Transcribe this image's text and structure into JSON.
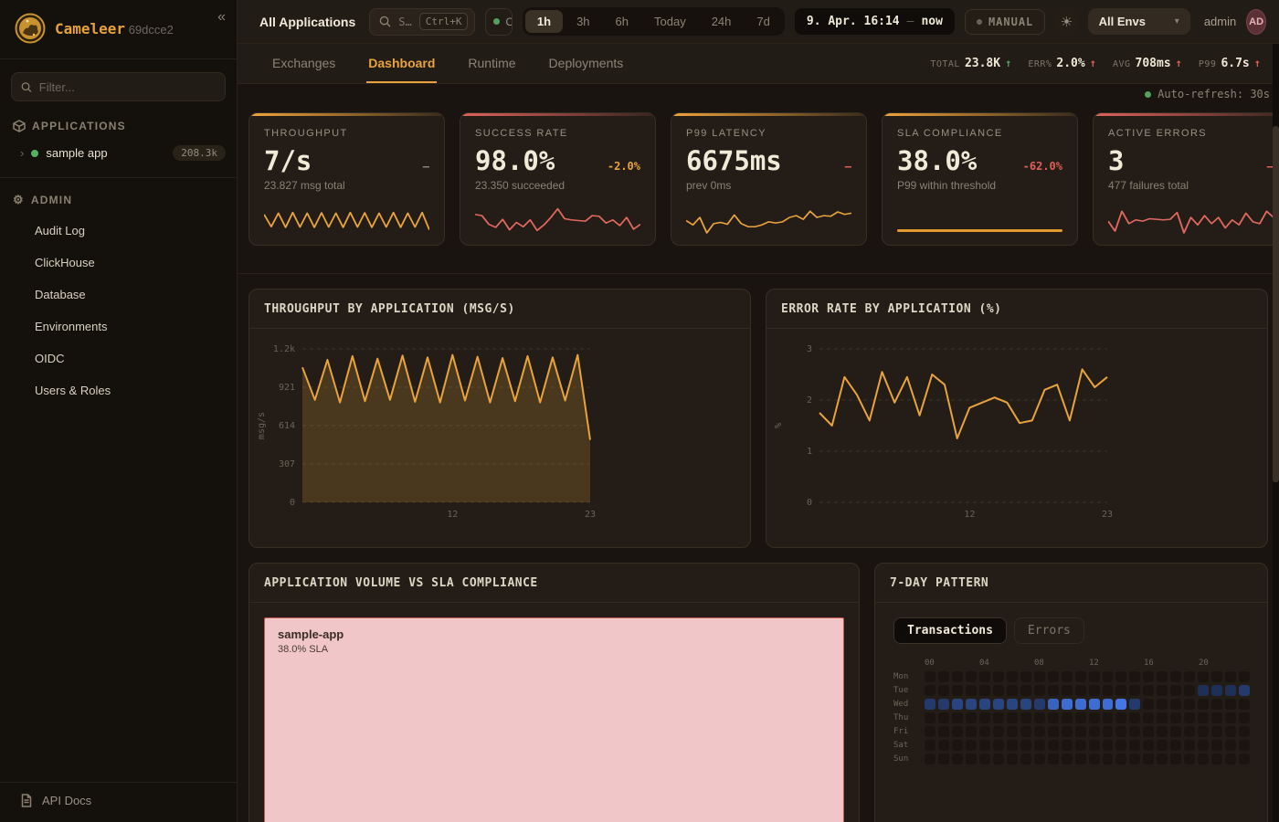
{
  "icons": {
    "collapse": "«",
    "chevron": "›",
    "dropdown": "▾",
    "sun": "☀",
    "gear": "⚙",
    "up_arrow": "↑"
  },
  "sidebar": {
    "brand": "Cameleer",
    "build": "69dcce2",
    "filter_placeholder": "Filter...",
    "applications_label": "APPLICATIONS",
    "app": {
      "name": "sample app",
      "badge": "208.3k"
    },
    "admin_label": "ADMIN",
    "admin_items": [
      "Audit Log",
      "ClickHouse",
      "Database",
      "Environments",
      "OIDC",
      "Users & Roles"
    ],
    "api_docs": "API Docs"
  },
  "topbar": {
    "title": "All Applications",
    "search": {
      "placeholder": "S…",
      "kbd": "Ctrl+K"
    },
    "status": "O",
    "ranges": [
      "1h",
      "3h",
      "6h",
      "Today",
      "24h",
      "7d"
    ],
    "active_range": "1h",
    "date": "9. Apr. 16:14",
    "date_sep": "–",
    "date_now": "now",
    "manual": "MANUAL",
    "env": "All Envs",
    "user": "admin",
    "avatar": "AD"
  },
  "tabs": {
    "items": [
      "Exchanges",
      "Dashboard",
      "Runtime",
      "Deployments"
    ],
    "active": "Dashboard"
  },
  "stats": [
    {
      "label": "TOTAL",
      "value": "23.8K",
      "arrow": "↑",
      "color": "green"
    },
    {
      "label": "ERR%",
      "value": "2.0%",
      "arrow": "↑",
      "color": "red"
    },
    {
      "label": "AVG",
      "value": "708ms",
      "arrow": "↑",
      "color": "red"
    },
    {
      "label": "P99",
      "value": "6.7s",
      "arrow": "↑",
      "color": "red"
    }
  ],
  "autorefresh": "Auto-refresh: 30s",
  "kpis": [
    {
      "label": "THROUGHPUT",
      "value": "7/s",
      "delta": "–",
      "delta_color": "#8a8174",
      "sub": "23.827 msg total",
      "accent": "orange",
      "spark": {
        "color": "#e8a33d",
        "values": [
          62,
          22,
          66,
          20,
          68,
          21,
          66,
          20,
          67,
          21,
          66,
          20,
          68,
          21,
          67,
          20,
          66,
          21,
          68,
          20,
          66,
          21,
          68,
          12
        ]
      }
    },
    {
      "label": "SUCCESS RATE",
      "value": "98.0%",
      "delta": "-2.0%",
      "delta_color": "#e8a33d",
      "sub": "23.350 succeeded",
      "accent": "red",
      "spark": {
        "color": "#e0685f",
        "values": [
          62,
          58,
          30,
          20,
          46,
          12,
          36,
          22,
          44,
          10,
          28,
          52,
          80,
          48,
          44,
          42,
          40,
          58,
          56,
          34,
          44,
          26,
          52,
          14,
          30
        ]
      }
    },
    {
      "label": "P99 LATENCY",
      "value": "6675ms",
      "delta": "–",
      "delta_color": "#dd5f58",
      "sub": "prev 0ms",
      "accent": "orange",
      "spark": {
        "color": "#e8a33d",
        "values": [
          42,
          28,
          52,
          2,
          32,
          36,
          30,
          60,
          32,
          22,
          22,
          28,
          38,
          34,
          38,
          52,
          58,
          46,
          72,
          52,
          58,
          56,
          70,
          62,
          66
        ]
      }
    },
    {
      "label": "SLA COMPLIANCE",
      "value": "38.0%",
      "delta": "-62.0%",
      "delta_color": "#dd5f58",
      "sub": "P99 within threshold",
      "accent": "orange",
      "bar_color": "#e09a2e"
    },
    {
      "label": "ACTIVE ERRORS",
      "value": "3",
      "delta": "–",
      "delta_color": "#dd5f58",
      "sub": "477 failures total",
      "accent": "red",
      "spark": {
        "color": "#e0685f",
        "values": [
          40,
          8,
          72,
          32,
          44,
          40,
          48,
          46,
          44,
          46,
          68,
          2,
          52,
          28,
          58,
          32,
          52,
          18,
          44,
          28,
          66,
          38,
          32,
          72,
          52
        ]
      }
    }
  ],
  "chart_data": [
    {
      "type": "line",
      "title": "THROUGHPUT BY APPLICATION (MSG/S)",
      "ylabel": "msg/s",
      "color": "#e8a33d",
      "fill": true,
      "ylim": [
        0,
        1228
      ],
      "y_ticks": [
        {
          "v": 0,
          "label": "0"
        },
        {
          "v": 307,
          "label": "307"
        },
        {
          "v": 614,
          "label": "614"
        },
        {
          "v": 921,
          "label": "921"
        },
        {
          "v": 1228,
          "label": "1.2k"
        }
      ],
      "x_ticks": [
        {
          "v": 12,
          "label": "12"
        },
        {
          "v": 23,
          "label": "23"
        }
      ],
      "x": [
        0,
        1,
        2,
        3,
        4,
        5,
        6,
        7,
        8,
        9,
        10,
        11,
        12,
        13,
        14,
        15,
        16,
        17,
        18,
        19,
        20,
        21,
        22,
        23
      ],
      "series": [
        {
          "name": "sample-app",
          "values": [
            1080,
            820,
            1140,
            800,
            1170,
            810,
            1150,
            820,
            1175,
            805,
            1160,
            800,
            1180,
            815,
            1165,
            800,
            1155,
            810,
            1170,
            800,
            1160,
            815,
            1180,
            500
          ]
        }
      ]
    },
    {
      "type": "line",
      "title": "ERROR RATE BY APPLICATION (%)",
      "ylabel": "%",
      "color": "#e8a33d",
      "fill": false,
      "ylim": [
        0,
        3
      ],
      "y_ticks": [
        {
          "v": 0,
          "label": "0"
        },
        {
          "v": 1,
          "label": "1"
        },
        {
          "v": 2,
          "label": "2"
        },
        {
          "v": 3,
          "label": "3"
        }
      ],
      "x_ticks": [
        {
          "v": 12,
          "label": "12"
        },
        {
          "v": 23,
          "label": "23"
        }
      ],
      "x": [
        0,
        1,
        2,
        3,
        4,
        5,
        6,
        7,
        8,
        9,
        10,
        11,
        12,
        13,
        14,
        15,
        16,
        17,
        18,
        19,
        20,
        21,
        22,
        23
      ],
      "series": [
        {
          "name": "sample-app",
          "values": [
            1.75,
            1.5,
            2.45,
            2.1,
            1.6,
            2.55,
            1.95,
            2.45,
            1.7,
            2.5,
            2.3,
            1.25,
            1.85,
            1.95,
            2.05,
            1.95,
            1.55,
            1.6,
            2.2,
            2.3,
            1.6,
            2.6,
            2.25,
            2.45
          ]
        }
      ]
    },
    {
      "type": "treemap",
      "title": "APPLICATION VOLUME VS SLA COMPLIANCE",
      "items": [
        {
          "name": "sample-app",
          "sla": "38.0% SLA",
          "fill": "#f1c6c9",
          "border": "#c4574d"
        }
      ]
    },
    {
      "type": "heatmap",
      "title": "7-DAY PATTERN",
      "toggle": [
        "Transactions",
        "Errors"
      ],
      "active_toggle": "Transactions",
      "rows": [
        "Mon",
        "Tue",
        "Wed",
        "Thu",
        "Fri",
        "Sat",
        "Sun"
      ],
      "col_labels": [
        "00",
        "04",
        "08",
        "12",
        "16",
        "20"
      ],
      "matrix": [
        [
          0,
          0,
          0,
          0,
          0,
          0,
          0,
          0,
          0,
          0,
          0,
          0,
          0,
          0,
          0,
          0,
          0,
          0,
          0,
          0,
          0,
          0,
          0,
          0
        ],
        [
          0,
          0,
          0,
          0,
          0,
          0,
          0,
          0,
          0,
          0,
          0,
          0,
          0,
          0,
          0,
          0,
          0,
          0,
          0,
          0,
          2,
          2,
          2,
          3
        ],
        [
          3,
          3,
          4,
          4,
          4,
          4,
          4,
          4,
          3,
          7,
          8,
          8,
          8,
          8,
          9,
          3,
          0,
          0,
          0,
          0,
          0,
          0,
          0,
          0
        ],
        [
          0,
          0,
          0,
          0,
          0,
          0,
          0,
          0,
          0,
          0,
          0,
          0,
          0,
          0,
          0,
          0,
          0,
          0,
          0,
          0,
          0,
          0,
          0,
          0
        ],
        [
          0,
          0,
          0,
          0,
          0,
          0,
          0,
          0,
          0,
          0,
          0,
          0,
          0,
          0,
          0,
          0,
          0,
          0,
          0,
          0,
          0,
          0,
          0,
          0
        ],
        [
          0,
          0,
          0,
          0,
          0,
          0,
          0,
          0,
          0,
          0,
          0,
          0,
          0,
          0,
          0,
          0,
          0,
          0,
          0,
          0,
          0,
          0,
          0,
          0
        ],
        [
          0,
          0,
          0,
          0,
          0,
          0,
          0,
          0,
          0,
          0,
          0,
          0,
          0,
          0,
          0,
          0,
          0,
          0,
          0,
          0,
          0,
          0,
          0,
          0
        ]
      ]
    }
  ]
}
